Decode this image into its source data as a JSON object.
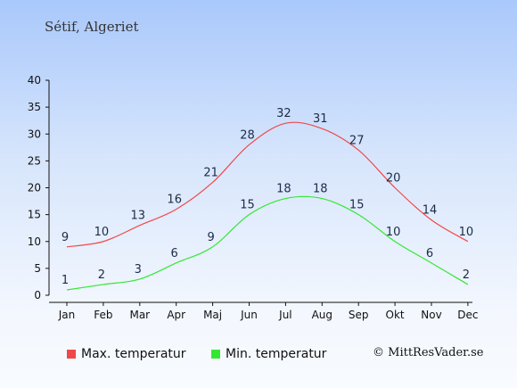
{
  "location": "Sétif, Algeriet",
  "copyright": "© MittResVader.se",
  "chart_data": {
    "type": "line",
    "categories": [
      "Jan",
      "Feb",
      "Mar",
      "Apr",
      "Maj",
      "Jun",
      "Jul",
      "Aug",
      "Sep",
      "Okt",
      "Nov",
      "Dec"
    ],
    "series": [
      {
        "name": "Max. temperatur",
        "color": "#f04848",
        "values": [
          9,
          10,
          13,
          16,
          21,
          28,
          32,
          31,
          27,
          20,
          14,
          10
        ]
      },
      {
        "name": "Min. temperatur",
        "color": "#33e833",
        "values": [
          1,
          2,
          3,
          6,
          9,
          15,
          18,
          18,
          15,
          10,
          6,
          2
        ]
      }
    ],
    "yticks": [
      0,
      5,
      10,
      15,
      20,
      25,
      30,
      35,
      40
    ],
    "ylim": [
      0,
      40
    ],
    "grid": false,
    "legend": "bottom"
  }
}
